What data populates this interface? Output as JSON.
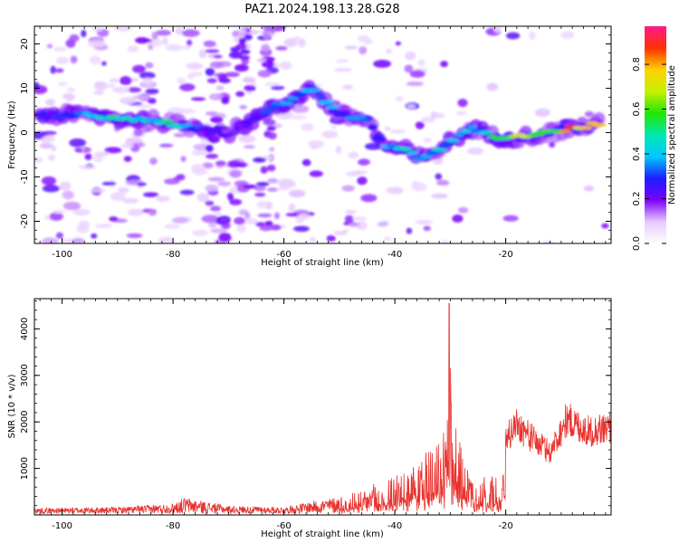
{
  "title": "PAZ1.2024.198.13.28.G28",
  "chart_data": [
    {
      "type": "heatmap",
      "xlabel": "Height of straight line (km)",
      "ylabel": "Frequency (Hz)",
      "xlim": [
        -105,
        -1
      ],
      "ylim": [
        -25,
        24
      ],
      "xticks": [
        -100,
        -80,
        -60,
        -40,
        -20
      ],
      "yticks": [
        20,
        10,
        0,
        -10,
        -20
      ],
      "colorbar": {
        "label": "Normalized spectral amplitude",
        "range": [
          0,
          0.97
        ],
        "ticks": [
          0.0,
          0.2,
          0.4,
          0.6,
          0.8
        ],
        "colormap": "gist_ncar-like (white, violet, blue, cyan, green, yellow, orange, red, pink)"
      },
      "ridge": {
        "description": "dominant frequency ridge",
        "points": [
          {
            "x": -104,
            "y": 4,
            "v": 0.25
          },
          {
            "x": -99,
            "y": 4,
            "v": 0.3
          },
          {
            "x": -95,
            "y": 4,
            "v": 0.45
          },
          {
            "x": -90,
            "y": 3,
            "v": 0.5
          },
          {
            "x": -85,
            "y": 3,
            "v": 0.45
          },
          {
            "x": -80,
            "y": 2,
            "v": 0.5
          },
          {
            "x": -75,
            "y": 1,
            "v": 0.3
          },
          {
            "x": -70,
            "y": 0,
            "v": 0.2
          },
          {
            "x": -55,
            "y": 10,
            "v": 0.45
          },
          {
            "x": -50,
            "y": 4,
            "v": 0.35
          },
          {
            "x": -45,
            "y": 3,
            "v": 0.35
          },
          {
            "x": -42,
            "y": -3,
            "v": 0.4
          },
          {
            "x": -38,
            "y": -4,
            "v": 0.45
          },
          {
            "x": -35,
            "y": -6,
            "v": 0.45
          },
          {
            "x": -30,
            "y": -2,
            "v": 0.4
          },
          {
            "x": -26,
            "y": 1,
            "v": 0.45
          },
          {
            "x": -22,
            "y": -1,
            "v": 0.55
          },
          {
            "x": -17,
            "y": -1,
            "v": 0.7
          },
          {
            "x": -12,
            "y": 0,
            "v": 0.75
          },
          {
            "x": -8,
            "y": 1,
            "v": 0.85
          },
          {
            "x": -3,
            "y": 2,
            "v": 0.9
          }
        ]
      }
    },
    {
      "type": "line",
      "xlabel": "Height of straight line (km)",
      "ylabel": "SNR (10 * v/v)",
      "xlim": [
        -105,
        -1
      ],
      "ylim": [
        0,
        4650
      ],
      "xticks": [
        -100,
        -80,
        -60,
        -40,
        -20
      ],
      "yticks": [
        1000,
        2000,
        3000,
        4000
      ],
      "series": [
        {
          "color": "#e8332e",
          "envelope": [
            {
              "x": -105,
              "y": 150
            },
            {
              "x": -90,
              "y": 170
            },
            {
              "x": -80,
              "y": 250
            },
            {
              "x": -78,
              "y": 380
            },
            {
              "x": -70,
              "y": 200
            },
            {
              "x": -60,
              "y": 170
            },
            {
              "x": -55,
              "y": 300
            },
            {
              "x": -50,
              "y": 400
            },
            {
              "x": -45,
              "y": 600
            },
            {
              "x": -40,
              "y": 900
            },
            {
              "x": -36,
              "y": 1200
            },
            {
              "x": -33,
              "y": 1500
            },
            {
              "x": -31,
              "y": 1800
            },
            {
              "x": -30,
              "y": 4500
            },
            {
              "x": -28,
              "y": 1500
            },
            {
              "x": -25,
              "y": 900
            },
            {
              "x": -21,
              "y": 800
            },
            {
              "x": -20,
              "y": 1800
            },
            {
              "x": -18,
              "y": 2200
            },
            {
              "x": -15,
              "y": 1800
            },
            {
              "x": -12,
              "y": 1500
            },
            {
              "x": -9,
              "y": 2300
            },
            {
              "x": -5,
              "y": 2000
            },
            {
              "x": -1,
              "y": 2100
            }
          ]
        }
      ]
    }
  ]
}
